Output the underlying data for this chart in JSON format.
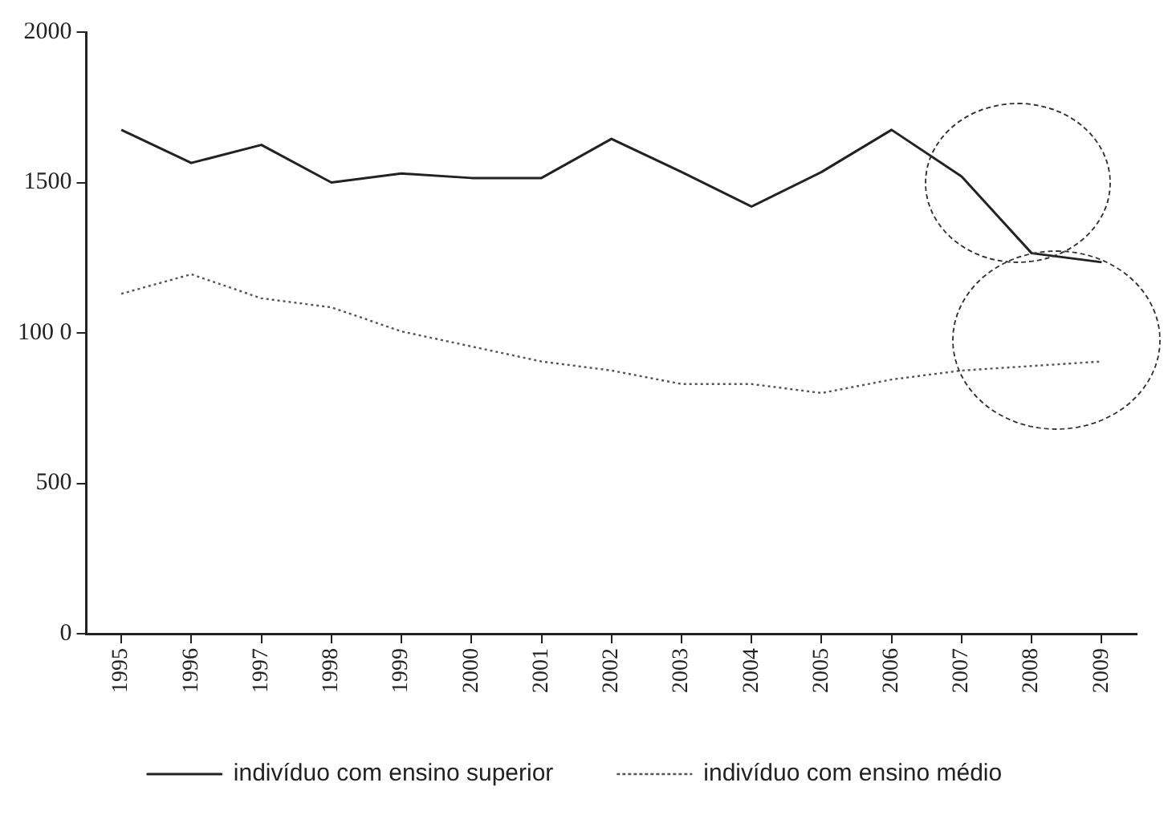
{
  "chart_data": {
    "type": "line",
    "categories": [
      "1995",
      "1996",
      "1997",
      "1998",
      "1999",
      "2000",
      "2001",
      "2002",
      "2003",
      "2004",
      "2005",
      "2006",
      "2007",
      "2008",
      "2009"
    ],
    "series": [
      {
        "name": "indivíduo com ensino superior",
        "color": "#222222",
        "line_style": "solid",
        "values": [
          1675,
          1565,
          1625,
          1500,
          1530,
          1515,
          1515,
          1645,
          1535,
          1420,
          1535,
          1675,
          1520,
          1265,
          1235
        ]
      },
      {
        "name": "indivíduo com ensino médio",
        "color": "#555555",
        "line_style": "dotted",
        "values": [
          1130,
          1195,
          1115,
          1085,
          1005,
          955,
          905,
          875,
          830,
          830,
          800,
          845,
          875,
          890,
          905
        ]
      }
    ],
    "ylim": [
      0,
      2000
    ],
    "yticks": [
      0,
      500,
      {
        "value": 1000,
        "label": "100 0"
      },
      1500,
      2000
    ],
    "grid": false,
    "legend": "bottom",
    "marker": "none"
  }
}
